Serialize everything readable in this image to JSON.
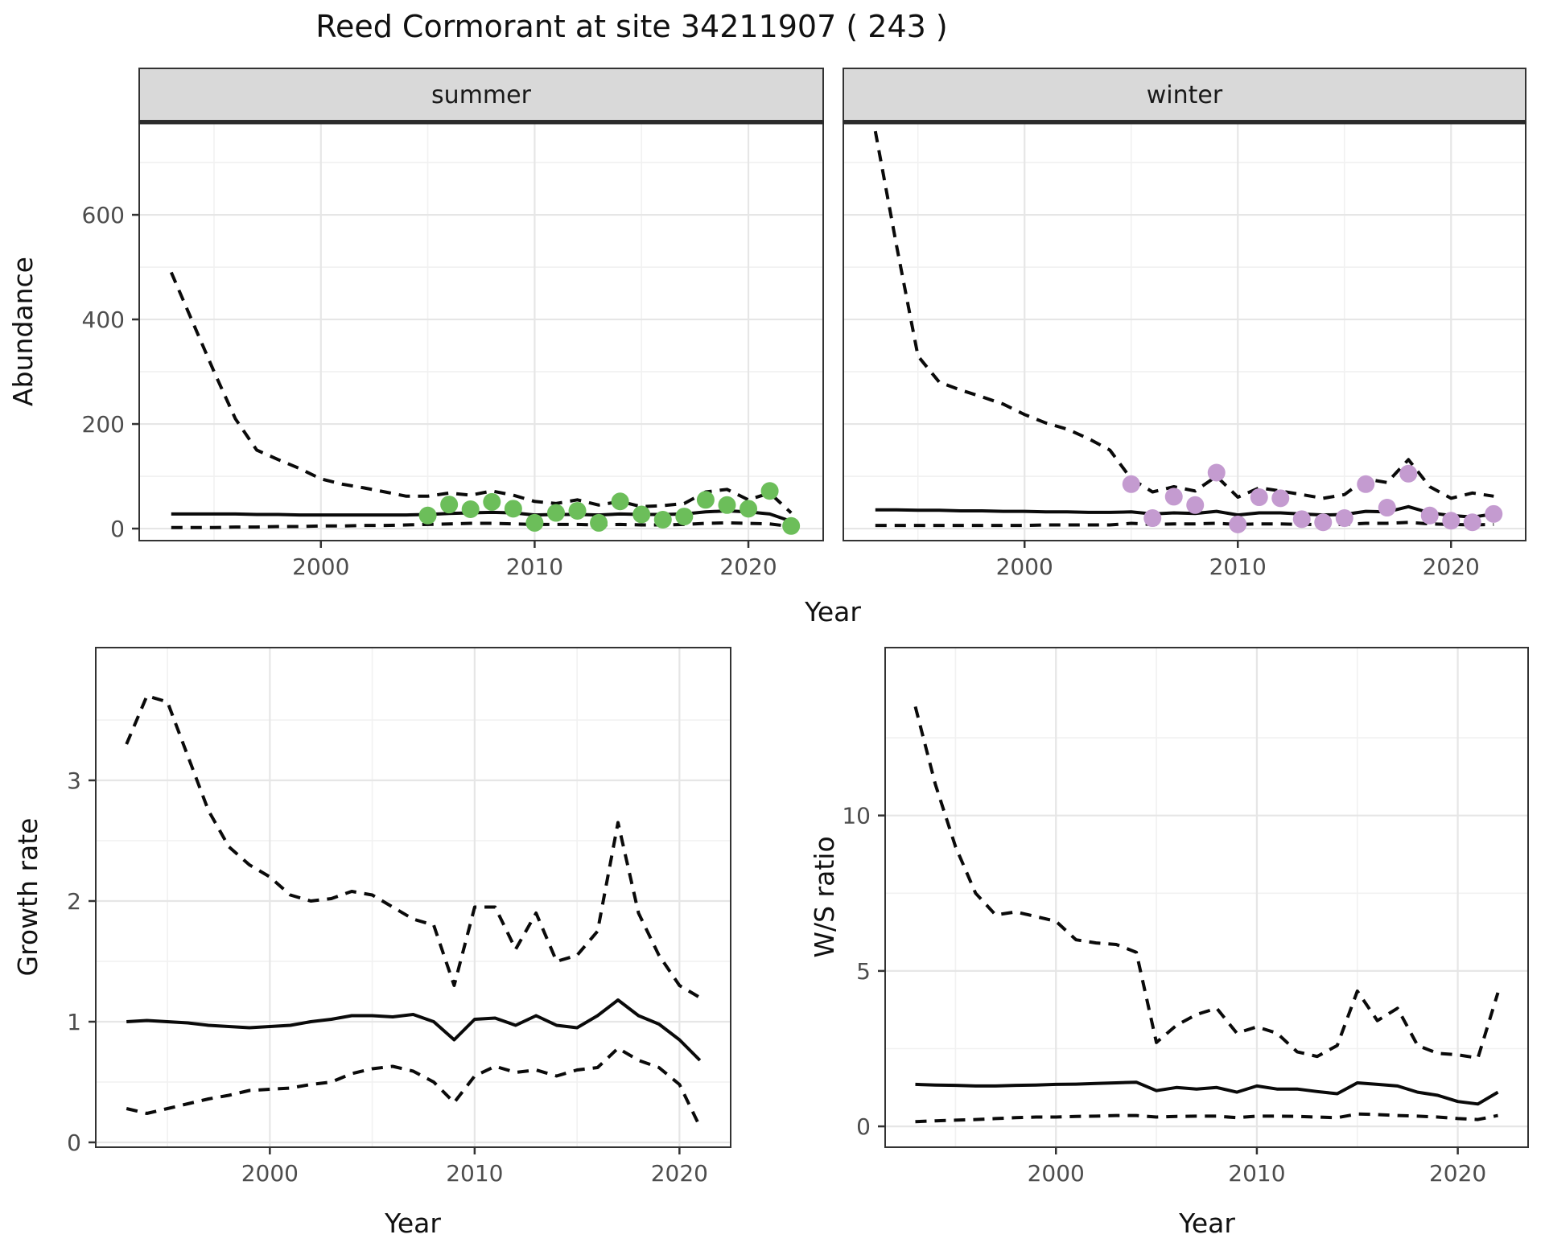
{
  "title": "Reed Cormorant at site 34211907 ( 243 )",
  "labels": {
    "year": "Year",
    "abundance": "Abundance",
    "growth_rate": "Growth rate",
    "ws_ratio": "W/S ratio",
    "summer": "summer",
    "winter": "winter"
  },
  "colors": {
    "summer_point": "#6CBE5A",
    "winter_point": "#C49BD0",
    "line": "#0a0a0a",
    "strip_bg": "#D9D9D9",
    "panel_border": "#333333",
    "grid_major": "#E6E6E6",
    "grid_minor": "#F1F1F1",
    "tick_mark": "#333333",
    "axis_text": "#4d4d4d"
  },
  "chart_data": [
    {
      "type": "line",
      "name": "abundance-by-season",
      "xlabel": "Year",
      "ylabel": "Abundance",
      "facets": [
        "summer",
        "winter"
      ],
      "xticks": [
        2000,
        2010,
        2020
      ],
      "xminor": [
        1995,
        2005,
        2015
      ],
      "yticks": [
        0,
        200,
        400,
        600
      ],
      "yminor": [
        100,
        300,
        500,
        700
      ],
      "xlim": [
        1991.5,
        2023.5
      ],
      "ylim": [
        -23,
        777
      ],
      "years": [
        1993,
        1994,
        1995,
        1996,
        1997,
        1998,
        1999,
        2000,
        2001,
        2002,
        2003,
        2004,
        2005,
        2006,
        2007,
        2008,
        2009,
        2010,
        2011,
        2012,
        2013,
        2014,
        2015,
        2016,
        2017,
        2018,
        2019,
        2020,
        2021,
        2022
      ],
      "series": [
        {
          "name": "summer-upper-ci",
          "facet": "summer",
          "style": "dashed",
          "values": [
            490,
            395,
            300,
            210,
            150,
            132,
            115,
            95,
            85,
            78,
            70,
            62,
            62,
            68,
            64,
            72,
            64,
            52,
            48,
            55,
            45,
            52,
            42,
            44,
            48,
            70,
            75,
            55,
            68,
            30
          ]
        },
        {
          "name": "summer-mean",
          "facet": "summer",
          "style": "solid",
          "values": [
            28,
            28,
            28,
            28,
            27,
            27,
            26,
            26,
            26,
            26,
            26,
            26,
            27,
            29,
            30,
            31,
            30,
            26,
            27,
            27,
            26,
            28,
            27,
            27,
            28,
            32,
            34,
            32,
            28,
            14
          ]
        },
        {
          "name": "summer-lower-ci",
          "facet": "summer",
          "style": "dashed",
          "values": [
            2,
            2,
            2,
            3,
            3,
            4,
            4,
            5,
            5,
            6,
            6,
            7,
            8,
            9,
            10,
            10,
            9,
            8,
            8,
            8,
            7,
            8,
            7,
            7,
            8,
            10,
            11,
            10,
            9,
            4
          ]
        },
        {
          "name": "winter-upper-ci",
          "facet": "winter",
          "style": "dashed",
          "values": [
            760,
            540,
            330,
            280,
            265,
            252,
            238,
            218,
            202,
            190,
            172,
            150,
            95,
            70,
            80,
            72,
            100,
            60,
            78,
            72,
            65,
            58,
            65,
            95,
            88,
            132,
            80,
            58,
            68,
            62
          ]
        },
        {
          "name": "winter-mean",
          "facet": "winter",
          "style": "solid",
          "values": [
            36,
            36,
            35,
            35,
            34,
            34,
            33,
            33,
            32,
            32,
            31,
            31,
            32,
            28,
            30,
            29,
            33,
            26,
            30,
            30,
            28,
            26,
            27,
            33,
            32,
            42,
            30,
            25,
            22,
            28
          ]
        },
        {
          "name": "winter-lower-ci",
          "facet": "winter",
          "style": "dashed",
          "values": [
            6,
            6,
            6,
            6,
            6,
            6,
            6,
            6,
            7,
            7,
            7,
            7,
            10,
            8,
            9,
            9,
            10,
            8,
            9,
            9,
            8,
            8,
            8,
            10,
            10,
            12,
            9,
            8,
            7,
            8
          ]
        }
      ],
      "points": [
        {
          "name": "summer-observed",
          "facet": "summer",
          "color": "#6CBE5A",
          "x": [
            2005,
            2006,
            2007,
            2008,
            2009,
            2010,
            2011,
            2012,
            2013,
            2014,
            2015,
            2016,
            2017,
            2018,
            2019,
            2020,
            2021,
            2022
          ],
          "y": [
            25,
            46,
            37,
            51,
            38,
            11,
            30,
            34,
            11,
            52,
            27,
            17,
            23,
            55,
            45,
            38,
            72,
            5
          ]
        },
        {
          "name": "winter-observed",
          "facet": "winter",
          "color": "#C49BD0",
          "x": [
            2005,
            2006,
            2007,
            2008,
            2009,
            2010,
            2011,
            2012,
            2013,
            2014,
            2015,
            2016,
            2017,
            2018,
            2019,
            2020,
            2021,
            2022
          ],
          "y": [
            85,
            20,
            61,
            45,
            107,
            8,
            60,
            58,
            18,
            12,
            20,
            85,
            40,
            105,
            25,
            15,
            12,
            28
          ]
        }
      ]
    },
    {
      "type": "line",
      "name": "growth-rate",
      "xlabel": "Year",
      "ylabel": "Growth rate",
      "xticks": [
        2000,
        2010,
        2020
      ],
      "xminor": [
        1995,
        2005,
        2015
      ],
      "yticks": [
        0,
        1,
        2,
        3
      ],
      "yminor": [
        0.5,
        1.5,
        2.5,
        3.5
      ],
      "xlim": [
        1991.5,
        2022.5
      ],
      "ylim": [
        -0.04,
        4.1
      ],
      "years": [
        1993,
        1994,
        1995,
        1996,
        1997,
        1998,
        1999,
        2000,
        2001,
        2002,
        2003,
        2004,
        2005,
        2006,
        2007,
        2008,
        2009,
        2010,
        2011,
        2012,
        2013,
        2014,
        2015,
        2016,
        2017,
        2018,
        2019,
        2020,
        2021
      ],
      "series": [
        {
          "name": "growth-upper-ci",
          "style": "dashed",
          "values": [
            3.3,
            3.7,
            3.65,
            3.2,
            2.75,
            2.45,
            2.3,
            2.2,
            2.05,
            2.0,
            2.02,
            2.08,
            2.05,
            1.95,
            1.85,
            1.8,
            1.3,
            1.95,
            1.95,
            1.6,
            1.9,
            1.5,
            1.55,
            1.75,
            2.65,
            1.9,
            1.55,
            1.3,
            1.2
          ]
        },
        {
          "name": "growth-mean",
          "style": "solid",
          "values": [
            1.0,
            1.01,
            1.0,
            0.99,
            0.97,
            0.96,
            0.95,
            0.96,
            0.97,
            1.0,
            1.02,
            1.05,
            1.05,
            1.04,
            1.06,
            1.0,
            0.85,
            1.02,
            1.03,
            0.97,
            1.05,
            0.97,
            0.95,
            1.05,
            1.18,
            1.05,
            0.98,
            0.85,
            0.68
          ]
        },
        {
          "name": "growth-lower-ci",
          "style": "dashed",
          "values": [
            0.28,
            0.24,
            0.28,
            0.32,
            0.36,
            0.39,
            0.43,
            0.44,
            0.45,
            0.48,
            0.5,
            0.57,
            0.61,
            0.63,
            0.59,
            0.5,
            0.33,
            0.55,
            0.63,
            0.58,
            0.6,
            0.55,
            0.6,
            0.62,
            0.78,
            0.68,
            0.62,
            0.48,
            0.13
          ]
        }
      ]
    },
    {
      "type": "line",
      "name": "winter-summer-ratio",
      "xlabel": "Year",
      "ylabel": "W/S ratio",
      "xticks": [
        2000,
        2010,
        2020
      ],
      "xminor": [
        1995,
        2005,
        2015
      ],
      "yticks": [
        0,
        5,
        10
      ],
      "yminor": [
        2.5,
        7.5,
        12.5
      ],
      "xlim": [
        1991.5,
        2023.5
      ],
      "ylim": [
        -0.67,
        15.4
      ],
      "years": [
        1993,
        1994,
        1995,
        1996,
        1997,
        1998,
        1999,
        2000,
        2001,
        2002,
        2003,
        2004,
        2005,
        2006,
        2007,
        2008,
        2009,
        2010,
        2011,
        2012,
        2013,
        2014,
        2015,
        2016,
        2017,
        2018,
        2019,
        2020,
        2021,
        2022
      ],
      "series": [
        {
          "name": "ws-upper-ci",
          "style": "dashed",
          "values": [
            13.5,
            11.0,
            9.0,
            7.5,
            6.8,
            6.9,
            6.75,
            6.6,
            6.0,
            5.9,
            5.85,
            5.6,
            2.7,
            3.25,
            3.6,
            3.8,
            3.0,
            3.2,
            3.0,
            2.4,
            2.25,
            2.6,
            4.35,
            3.4,
            3.8,
            2.6,
            2.35,
            2.3,
            2.2,
            4.3
          ]
        },
        {
          "name": "ws-mean",
          "style": "solid",
          "values": [
            1.35,
            1.33,
            1.32,
            1.3,
            1.3,
            1.32,
            1.33,
            1.35,
            1.36,
            1.38,
            1.4,
            1.42,
            1.15,
            1.25,
            1.2,
            1.25,
            1.1,
            1.3,
            1.2,
            1.2,
            1.12,
            1.05,
            1.4,
            1.35,
            1.3,
            1.1,
            1.0,
            0.8,
            0.72,
            1.1
          ]
        },
        {
          "name": "ws-lower-ci",
          "style": "dashed",
          "values": [
            0.15,
            0.18,
            0.2,
            0.22,
            0.25,
            0.28,
            0.3,
            0.3,
            0.32,
            0.33,
            0.35,
            0.35,
            0.3,
            0.32,
            0.33,
            0.33,
            0.28,
            0.33,
            0.33,
            0.32,
            0.3,
            0.28,
            0.4,
            0.38,
            0.35,
            0.33,
            0.3,
            0.25,
            0.22,
            0.35
          ]
        }
      ]
    }
  ]
}
